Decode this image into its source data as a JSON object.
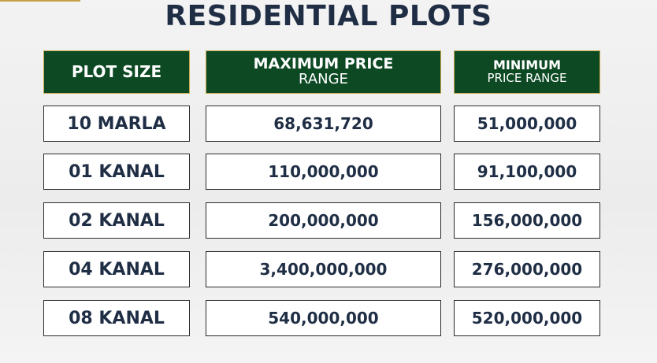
{
  "title": "RESIDENTIAL PLOTS",
  "headers": {
    "plot_size": "PLOT SIZE",
    "max_line1": "MAXIMUM PRICE",
    "max_line2": "RANGE",
    "min_line1": "MINIMUM",
    "min_line2": "PRICE RANGE"
  },
  "rows": [
    {
      "size": "10 MARLA",
      "max": "68,631,720",
      "min": "51,000,000"
    },
    {
      "size": "01 KANAL",
      "max": "110,000,000",
      "min": "91,100,000"
    },
    {
      "size": "02 KANAL",
      "max": "200,000,000",
      "min": "156,000,000"
    },
    {
      "size": "04 KANAL",
      "max": "3,400,000,000",
      "min": "276,000,000"
    },
    {
      "size": "08 KANAL",
      "max": "540,000,000",
      "min": "520,000,000"
    }
  ],
  "colors": {
    "header_bg": "#0d4a24",
    "header_border": "#c8a94a",
    "text_dark": "#1f2e45",
    "accent": "#c9a14a"
  }
}
